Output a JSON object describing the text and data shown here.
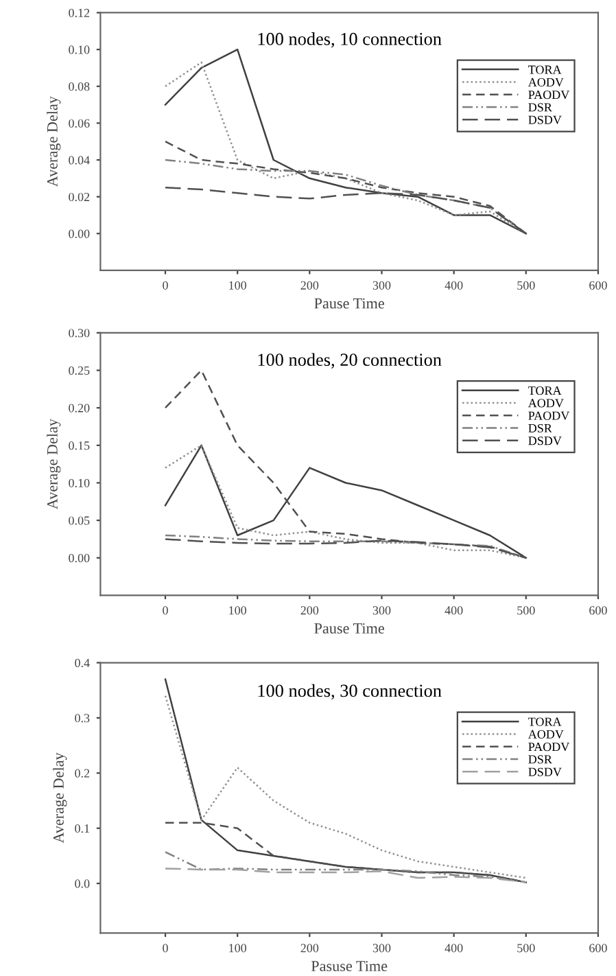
{
  "chart_data": [
    {
      "type": "line",
      "title": "100 nodes, 10 connection",
      "xlabel": "Pause Time",
      "ylabel": "Average Delay",
      "x": [
        0,
        50,
        100,
        150,
        200,
        250,
        300,
        350,
        400,
        450,
        500
      ],
      "xlim": [
        -90,
        600
      ],
      "xticks": [
        0,
        100,
        200,
        300,
        400,
        500,
        600
      ],
      "ylim": [
        -0.02,
        0.12
      ],
      "yticks": [
        {
          "value": 0,
          "label": "0.00"
        },
        {
          "value": 0.02,
          "label": "0.02"
        },
        {
          "value": 0.04,
          "label": "0.04"
        },
        {
          "value": 0.06,
          "label": "0.06"
        },
        {
          "value": 0.08,
          "label": "0.08"
        },
        {
          "value": 0.1,
          "label": "0.10"
        },
        {
          "value": 0.12,
          "label": "0.12"
        }
      ],
      "grid": false,
      "legend": "top right",
      "series": [
        {
          "name": "TORA",
          "color": "#404040",
          "line_style": "solid",
          "values": [
            0.07,
            0.09,
            0.1,
            0.04,
            0.03,
            0.025,
            0.022,
            0.02,
            0.01,
            0.01,
            0.0
          ]
        },
        {
          "name": "AODV",
          "color": "#909090",
          "line_style": "dotted",
          "values": [
            0.08,
            0.093,
            0.04,
            0.03,
            0.034,
            0.03,
            0.022,
            0.018,
            0.01,
            0.012,
            0.0
          ]
        },
        {
          "name": "PAODV",
          "color": "#505050",
          "line_style": "dashed",
          "values": [
            0.05,
            0.04,
            0.038,
            0.035,
            0.033,
            0.03,
            0.025,
            0.022,
            0.02,
            0.015,
            0.0
          ]
        },
        {
          "name": "DSR",
          "color": "#808080",
          "line_style": "dashdot",
          "values": [
            0.04,
            0.038,
            0.035,
            0.034,
            0.034,
            0.032,
            0.026,
            0.021,
            0.018,
            0.014,
            0.0
          ]
        },
        {
          "name": "DSDV",
          "color": "#505050",
          "line_style": "longdash",
          "values": [
            0.025,
            0.024,
            0.022,
            0.02,
            0.019,
            0.021,
            0.022,
            0.021,
            0.018,
            0.014,
            0.0
          ]
        }
      ]
    },
    {
      "type": "line",
      "title": "100 nodes, 20 connection",
      "xlabel": "Pause Time",
      "ylabel": "Average Delay",
      "x": [
        0,
        50,
        100,
        150,
        200,
        250,
        300,
        350,
        400,
        450,
        500
      ],
      "xlim": [
        -90,
        600
      ],
      "xticks": [
        0,
        100,
        200,
        300,
        400,
        500,
        600
      ],
      "ylim": [
        -0.05,
        0.3
      ],
      "yticks": [
        {
          "value": 0,
          "label": "0.00"
        },
        {
          "value": 0.05,
          "label": "0.05"
        },
        {
          "value": 0.1,
          "label": "0.10"
        },
        {
          "value": 0.15,
          "label": "0.15"
        },
        {
          "value": 0.2,
          "label": "0.20"
        },
        {
          "value": 0.25,
          "label": "0.25"
        },
        {
          "value": 0.3,
          "label": "0.30"
        }
      ],
      "grid": false,
      "legend": "top right",
      "series": [
        {
          "name": "TORA",
          "color": "#404040",
          "line_style": "solid",
          "values": [
            0.07,
            0.15,
            0.03,
            0.05,
            0.12,
            0.1,
            0.09,
            0.07,
            0.05,
            0.03,
            0.0
          ]
        },
        {
          "name": "AODV",
          "color": "#909090",
          "line_style": "dotted",
          "values": [
            0.12,
            0.15,
            0.04,
            0.03,
            0.035,
            0.025,
            0.02,
            0.02,
            0.01,
            0.01,
            0.0
          ]
        },
        {
          "name": "PAODV",
          "color": "#505050",
          "line_style": "dashed",
          "values": [
            0.2,
            0.25,
            0.15,
            0.1,
            0.035,
            0.032,
            0.025,
            0.02,
            0.018,
            0.015,
            0.0
          ]
        },
        {
          "name": "DSR",
          "color": "#808080",
          "line_style": "dashdot",
          "values": [
            0.03,
            0.028,
            0.025,
            0.023,
            0.022,
            0.022,
            0.022,
            0.02,
            0.018,
            0.016,
            0.0
          ]
        },
        {
          "name": "DSDV",
          "color": "#505050",
          "line_style": "longdash",
          "values": [
            0.025,
            0.022,
            0.02,
            0.019,
            0.019,
            0.02,
            0.023,
            0.021,
            0.018,
            0.014,
            0.0
          ]
        }
      ]
    },
    {
      "type": "line",
      "title": "100 nodes, 30 connection",
      "xlabel": "Pasuse Time",
      "ylabel": "Average Delay",
      "x": [
        0,
        50,
        100,
        150,
        200,
        250,
        300,
        350,
        400,
        450,
        500
      ],
      "xlim": [
        -90,
        600
      ],
      "xticks": [
        0,
        100,
        200,
        300,
        400,
        500,
        600
      ],
      "ylim": [
        -0.09,
        0.4
      ],
      "yticks": [
        {
          "value": 0,
          "label": "0.0"
        },
        {
          "value": 0.1,
          "label": "0.1"
        },
        {
          "value": 0.2,
          "label": "0.2"
        },
        {
          "value": 0.3,
          "label": "0.3"
        },
        {
          "value": 0.4,
          "label": "0.4"
        }
      ],
      "grid": false,
      "legend": "top right",
      "series": [
        {
          "name": "TORA",
          "color": "#404040",
          "line_style": "solid",
          "values": [
            0.37,
            0.115,
            0.06,
            0.05,
            0.04,
            0.03,
            0.025,
            0.02,
            0.02,
            0.015,
            0.002
          ]
        },
        {
          "name": "AODV",
          "color": "#909090",
          "line_style": "dotted",
          "values": [
            0.34,
            0.115,
            0.21,
            0.15,
            0.11,
            0.09,
            0.06,
            0.04,
            0.03,
            0.02,
            0.01
          ]
        },
        {
          "name": "PAODV",
          "color": "#505050",
          "line_style": "dashed",
          "values": [
            0.11,
            0.11,
            0.1,
            0.05,
            0.04,
            0.03,
            0.025,
            0.02,
            0.02,
            0.015,
            0.002
          ]
        },
        {
          "name": "DSR",
          "color": "#808080",
          "line_style": "dashdot",
          "values": [
            0.057,
            0.025,
            0.027,
            0.025,
            0.025,
            0.025,
            0.025,
            0.022,
            0.015,
            0.012,
            0.002
          ]
        },
        {
          "name": "DSDV",
          "color": "#a0a0a0",
          "line_style": "longdash",
          "values": [
            0.027,
            0.025,
            0.025,
            0.02,
            0.02,
            0.02,
            0.022,
            0.01,
            0.012,
            0.01,
            0.002
          ]
        }
      ]
    }
  ]
}
